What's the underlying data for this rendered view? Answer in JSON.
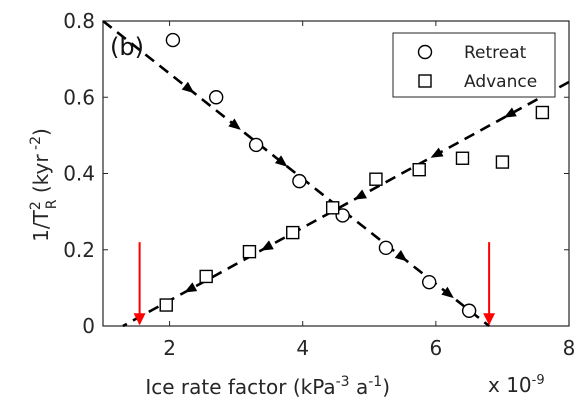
{
  "chart_data": {
    "type": "scatter",
    "panel_label": "(b)",
    "xlabel_main": "Ice rate factor (kPa",
    "xlabel_exp1": "-3",
    "xlabel_mid": " a",
    "xlabel_exp2": "-1",
    "xlabel_end": ")",
    "ylabel_pre": "1/T",
    "ylabel_sup": "2",
    "ylabel_sub": "R",
    "ylabel_post": " (kyr",
    "ylabel_exp": " -2",
    "ylabel_end": ")",
    "x_multiplier_base": "x 10",
    "x_multiplier_exp": "-9",
    "xlim": [
      1,
      8
    ],
    "ylim": [
      0,
      0.8
    ],
    "xticks": [
      2,
      4,
      6,
      8
    ],
    "xtick_labels": [
      "2",
      "4",
      "6",
      "8"
    ],
    "yticks": [
      0,
      0.2,
      0.4,
      0.6,
      0.8
    ],
    "ytick_labels": [
      "0",
      "0.2",
      "0.4",
      "0.6",
      "0.8"
    ],
    "legend_position": "top-right",
    "series": [
      {
        "name": "Retreat",
        "marker": "circle",
        "x": [
          2.05,
          2.7,
          3.3,
          3.95,
          4.6,
          5.25,
          5.9,
          6.5
        ],
        "y": [
          0.75,
          0.6,
          0.475,
          0.38,
          0.29,
          0.205,
          0.115,
          0.04
        ]
      },
      {
        "name": "Advance",
        "marker": "square",
        "x": [
          1.95,
          2.55,
          3.2,
          3.85,
          4.45,
          5.1,
          5.75,
          6.4,
          7.0,
          7.6
        ],
        "y": [
          0.055,
          0.13,
          0.195,
          0.245,
          0.31,
          0.385,
          0.41,
          0.44,
          0.43,
          0.56
        ]
      }
    ],
    "dashed_lines": [
      {
        "x": [
          1.0,
          6.8
        ],
        "y": [
          0.8,
          0.0
        ],
        "arrows_at_x": [
          2.3,
          3.0,
          3.7,
          5.5,
          6.2
        ]
      },
      {
        "x": [
          8.0,
          1.3
        ],
        "y": [
          0.64,
          0.0
        ],
        "arrows_at_x": [
          7.1,
          6.0,
          4.85,
          3.45,
          2.3
        ]
      }
    ],
    "red_arrows": [
      {
        "x": 1.55,
        "y_from": 0.22,
        "y_to": 0.0
      },
      {
        "x": 6.8,
        "y_from": 0.22,
        "y_to": 0.0
      }
    ],
    "colors": {
      "markers": "#000000",
      "dashed": "#000000",
      "red_arrow": "#ff0000",
      "axis": "#262626"
    }
  }
}
